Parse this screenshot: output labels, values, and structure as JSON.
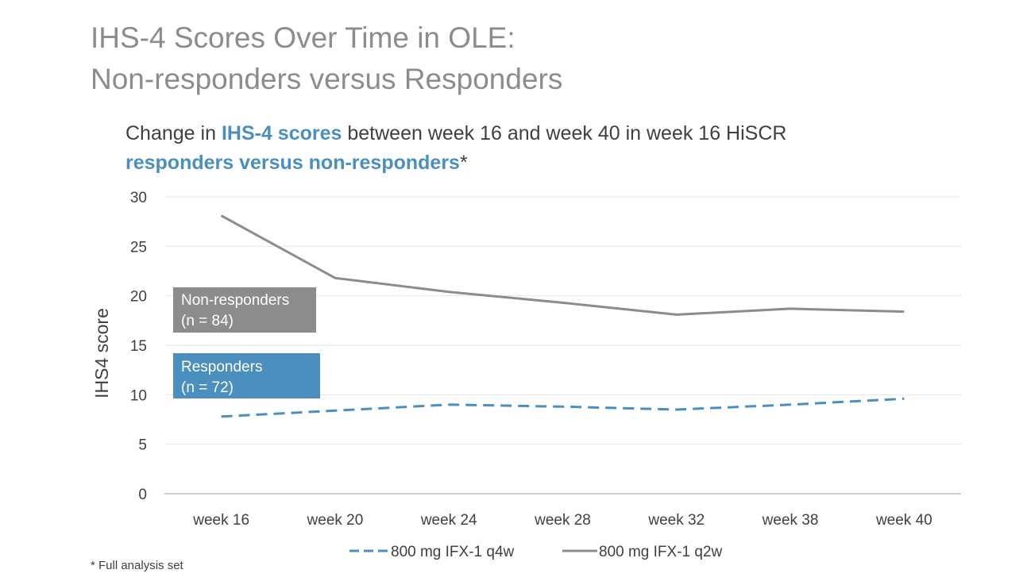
{
  "title": {
    "line1": "IHS-4 Scores Over Time in OLE:",
    "line2": "Non-responders versus Responders"
  },
  "subtitle": {
    "part1": "Change in ",
    "part2": "IHS-4 scores",
    "part3": " between week 16 and week 40 in week 16 HiSCR",
    "part4": "responders versus non-responders",
    "part5": "*"
  },
  "footnote": "* Full analysis set",
  "colors": {
    "responders": "#4a8fbd",
    "non_responders": "#8c8c8c",
    "axis_text": "#404040",
    "gridline": "#e6e6e6",
    "title": "#8c8c8c"
  },
  "chart_data": {
    "type": "line",
    "title": "Change in IHS-4 scores between week 16 and week 40 in week 16 HiSCR responders versus non-responders*",
    "xlabel": "",
    "ylabel": "IHS4 score",
    "ylim": [
      0,
      30
    ],
    "yticks": [
      0,
      5,
      10,
      15,
      20,
      25,
      30
    ],
    "grid": true,
    "legend_position": "bottom",
    "categories": [
      "week 16",
      "week 20",
      "week 24",
      "week 28",
      "week 32",
      "week 38",
      "week 40"
    ],
    "series": [
      {
        "name": "800 mg IFX-1 q4w",
        "style": "dashed",
        "color": "#4a8fbd",
        "values": [
          7.8,
          8.4,
          9.0,
          8.8,
          8.5,
          9.0,
          9.6
        ]
      },
      {
        "name": "800 mg IFX-1 q2w",
        "style": "solid",
        "color": "#8c8c8c",
        "values": [
          28.1,
          21.8,
          20.4,
          19.3,
          18.1,
          18.7,
          18.4
        ]
      }
    ],
    "annotations": [
      {
        "line1": "Non-responders",
        "line2": "(n = 84)",
        "color": "#8c8c8c"
      },
      {
        "line1": "Responders",
        "line2": "(n = 72)",
        "color": "#4a8fbd"
      }
    ]
  }
}
